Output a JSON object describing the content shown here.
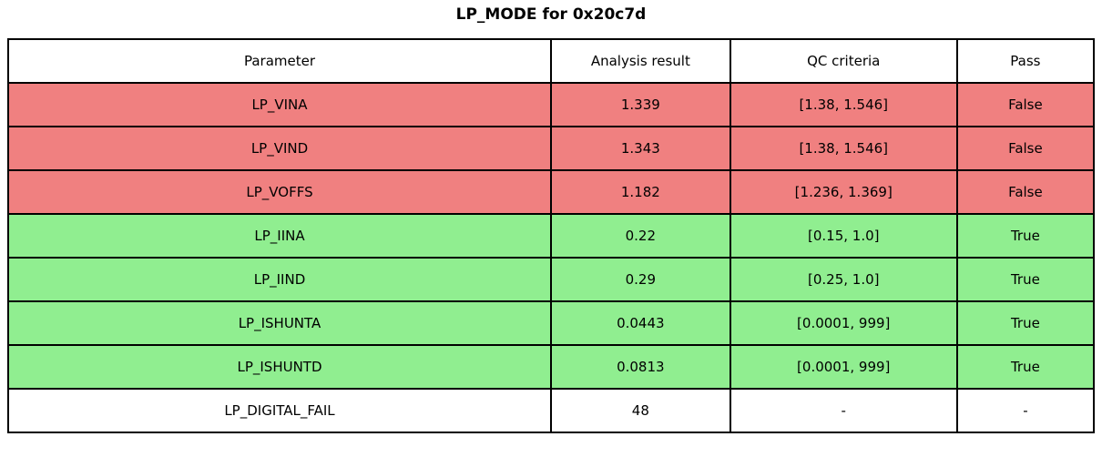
{
  "title": "LP_MODE for 0x20c7d",
  "colors": {
    "fail_row": "#f08080",
    "pass_row": "#90ee90",
    "neutral_row": "#ffffff",
    "border": "#000000",
    "text": "#000000"
  },
  "chart_data": {
    "type": "table",
    "title": "LP_MODE for 0x20c7d",
    "columns": [
      "Parameter",
      "Analysis result",
      "QC criteria",
      "Pass"
    ],
    "rows": [
      {
        "parameter": "LP_VINA",
        "analysis_result": "1.339",
        "qc_criteria": "[1.38, 1.546]",
        "pass": "False",
        "status": "fail"
      },
      {
        "parameter": "LP_VIND",
        "analysis_result": "1.343",
        "qc_criteria": "[1.38, 1.546]",
        "pass": "False",
        "status": "fail"
      },
      {
        "parameter": "LP_VOFFS",
        "analysis_result": "1.182",
        "qc_criteria": "[1.236, 1.369]",
        "pass": "False",
        "status": "fail"
      },
      {
        "parameter": "LP_IINA",
        "analysis_result": "0.22",
        "qc_criteria": "[0.15, 1.0]",
        "pass": "True",
        "status": "pass"
      },
      {
        "parameter": "LP_IIND",
        "analysis_result": "0.29",
        "qc_criteria": "[0.25, 1.0]",
        "pass": "True",
        "status": "pass"
      },
      {
        "parameter": "LP_ISHUNTA",
        "analysis_result": "0.0443",
        "qc_criteria": "[0.0001, 999]",
        "pass": "True",
        "status": "pass"
      },
      {
        "parameter": "LP_ISHUNTD",
        "analysis_result": "0.0813",
        "qc_criteria": "[0.0001, 999]",
        "pass": "True",
        "status": "pass"
      },
      {
        "parameter": "LP_DIGITAL_FAIL",
        "analysis_result": "48",
        "qc_criteria": "-",
        "pass": "-",
        "status": "neutral"
      }
    ]
  }
}
